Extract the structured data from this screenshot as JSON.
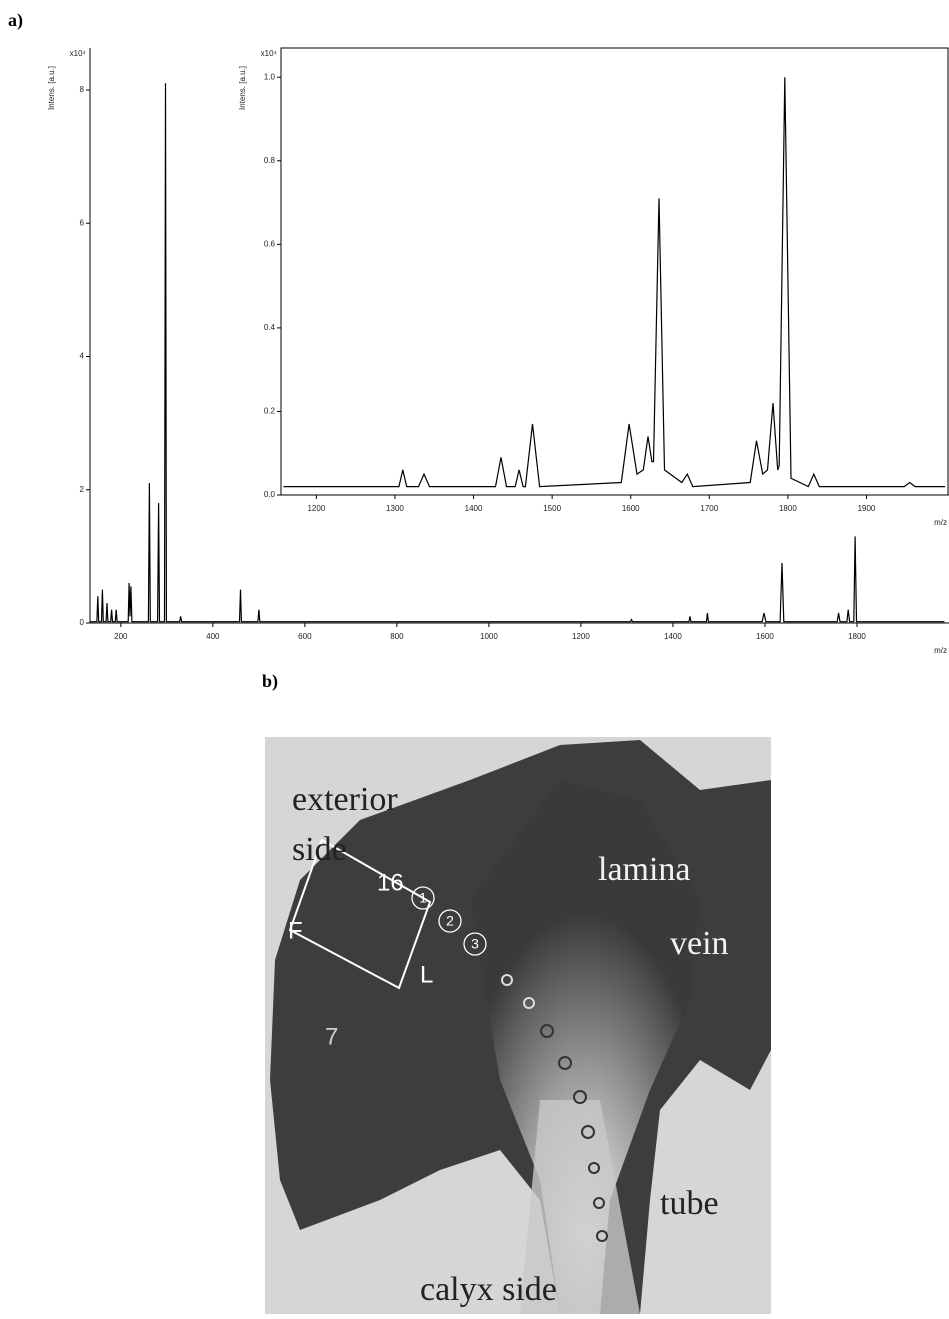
{
  "panel_labels": [
    "a)",
    "b)"
  ],
  "chart_data": [
    {
      "type": "line",
      "y_label": "Intens. [a.u.]",
      "y_unit": "x10⁴",
      "x_label": "m/z",
      "color": "#000000",
      "xlim": [
        133,
        2000
      ],
      "ylim": [
        0,
        8.63
      ],
      "xticks": [
        200,
        400,
        600,
        800,
        1000,
        1200,
        1400,
        1600,
        1800
      ],
      "yticks": [
        0,
        2,
        4,
        6,
        8
      ],
      "x": [
        133,
        148,
        150,
        152,
        158,
        160,
        162,
        168,
        170,
        172,
        178,
        180,
        182,
        188,
        190,
        192,
        216,
        218,
        220,
        222,
        224,
        260,
        262,
        264,
        280,
        282,
        284,
        295,
        297,
        299,
        328,
        330,
        332,
        458,
        460,
        462,
        498,
        500,
        502,
        1308,
        1310,
        1312,
        1435,
        1437,
        1439,
        1473,
        1475,
        1477,
        1594,
        1598,
        1602,
        1633,
        1637,
        1641,
        1757,
        1760,
        1763,
        1778,
        1781,
        1784,
        1793,
        1796,
        1799,
        1990
      ],
      "values": [
        0.02,
        0.02,
        0.4,
        0.02,
        0.02,
        0.5,
        0.02,
        0.02,
        0.3,
        0.02,
        0.02,
        0.2,
        0.02,
        0.02,
        0.2,
        0.02,
        0.02,
        0.6,
        0.1,
        0.55,
        0.02,
        0.02,
        2.1,
        0.02,
        0.02,
        1.8,
        0.02,
        0.02,
        8.1,
        0.02,
        0.02,
        0.1,
        0.02,
        0.02,
        0.5,
        0.02,
        0.02,
        0.2,
        0.02,
        0.02,
        0.05,
        0.02,
        0.02,
        0.1,
        0.02,
        0.02,
        0.15,
        0.02,
        0.02,
        0.15,
        0.02,
        0.02,
        0.9,
        0.02,
        0.02,
        0.15,
        0.02,
        0.02,
        0.2,
        0.02,
        0.02,
        1.3,
        0.02,
        0.02
      ]
    },
    {
      "type": "line",
      "y_label": "Intens. [a.u.]",
      "y_unit": "x10⁴",
      "x_label": "m/z",
      "color": "#000000",
      "xlim": [
        1155,
        2005
      ],
      "ylim": [
        0,
        1.07
      ],
      "xticks": [
        1200,
        1300,
        1400,
        1500,
        1600,
        1700,
        1800,
        1900
      ],
      "yticks": [
        {
          "value": 0,
          "label": "0.0"
        },
        0.2,
        0.4,
        0.6,
        0.8,
        {
          "value": 1,
          "label": "1.0"
        }
      ],
      "x": [
        1158,
        1305,
        1310,
        1315,
        1330,
        1337,
        1344,
        1428,
        1435,
        1442,
        1453,
        1458,
        1463,
        1466,
        1475,
        1484,
        1588,
        1598,
        1608,
        1616,
        1622,
        1627,
        1629,
        1636,
        1643,
        1665,
        1672,
        1679,
        1752,
        1760,
        1768,
        1774,
        1781,
        1787,
        1789,
        1796,
        1804,
        1826,
        1833,
        1840,
        1948,
        1955,
        1962,
        2000
      ],
      "values": [
        0.02,
        0.02,
        0.06,
        0.02,
        0.02,
        0.05,
        0.02,
        0.02,
        0.09,
        0.02,
        0.02,
        0.06,
        0.02,
        0.02,
        0.17,
        0.02,
        0.03,
        0.17,
        0.05,
        0.06,
        0.14,
        0.08,
        0.08,
        0.71,
        0.06,
        0.03,
        0.05,
        0.02,
        0.03,
        0.13,
        0.05,
        0.06,
        0.22,
        0.06,
        0.07,
        1.0,
        0.04,
        0.02,
        0.05,
        0.02,
        0.02,
        0.03,
        0.02,
        0.02
      ]
    }
  ],
  "photo": {
    "labels": [
      "exterior",
      "side",
      "lamina",
      "vein",
      "tube",
      "calyx side",
      "16",
      "F",
      "L",
      "7",
      "1",
      "2",
      "3"
    ]
  }
}
